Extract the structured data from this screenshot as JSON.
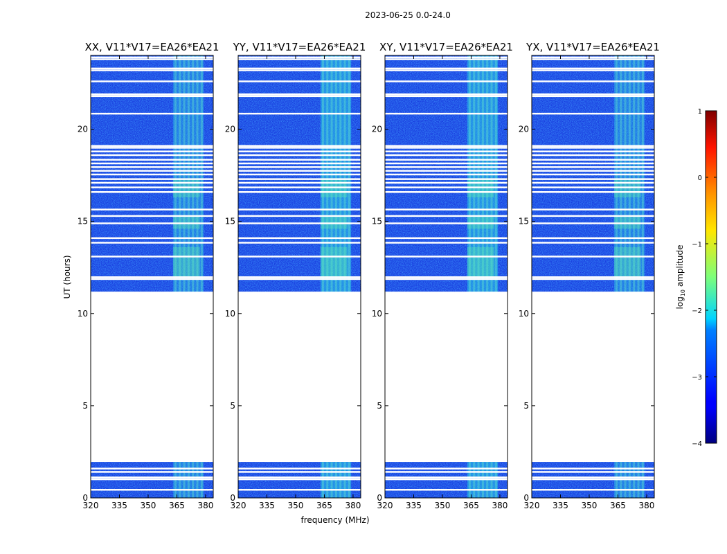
{
  "chart_data": {
    "type": "heatmap",
    "title": "2023-06-25 0.0-24.0",
    "xlabel": "frequency (MHz)",
    "ylabel": "UT (hours)",
    "xlim": [
      320,
      384
    ],
    "ylim": [
      0,
      24
    ],
    "xticks": [
      "320",
      "335",
      "350",
      "365",
      "380"
    ],
    "xtick_values": [
      320,
      335,
      350,
      365,
      380
    ],
    "yticks": [
      "0",
      "5",
      "10",
      "15",
      "20"
    ],
    "ytick_values": [
      0,
      5,
      10,
      15,
      20
    ],
    "colorbar": {
      "label_prefix": "log",
      "label_sub": "10",
      "label_suffix": " amplitude",
      "range": [
        -4,
        1
      ],
      "ticks": [
        "1",
        "0",
        "−1",
        "−2",
        "−3",
        "−4"
      ],
      "tick_values": [
        1,
        0,
        -1,
        -2,
        -3,
        -4
      ]
    },
    "panels": [
      {
        "title": "XX, V11*V17=EA26*EA21",
        "pol": "XX"
      },
      {
        "title": "YY, V11*V17=EA26*EA21",
        "pol": "YY"
      },
      {
        "title": "XY, V11*V17=EA26*EA21",
        "pol": "XY"
      },
      {
        "title": "YX, V11*V17=EA26*EA21",
        "pol": "YX"
      }
    ],
    "data_blocks_hours": [
      [
        0.0,
        1.95
      ],
      [
        11.1,
        24.0
      ]
    ],
    "flagged_gap_hours": [
      1.95,
      11.1
    ],
    "rfi_band_mhz": [
      363,
      379
    ],
    "flag_lines_hours": [
      0.45,
      1.02,
      1.12,
      1.42,
      1.6,
      11.15,
      11.88,
      11.98,
      13.1,
      13.85,
      14.1,
      14.9,
      15.3,
      15.65,
      16.6,
      16.85,
      17.1,
      17.3,
      17.55,
      17.75,
      17.95,
      18.15,
      18.35,
      18.6,
      18.8,
      19.0,
      19.1,
      20.85,
      21.8,
      21.9,
      22.6,
      23.2,
      23.3,
      23.8,
      23.9
    ]
  }
}
